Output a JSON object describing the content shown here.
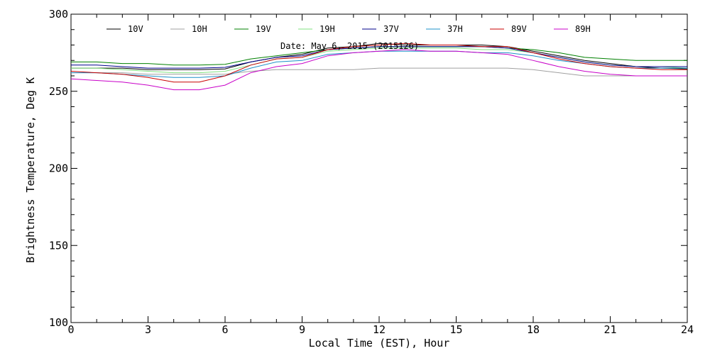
{
  "chart_data": {
    "type": "line",
    "title": "",
    "annotation": "Date: May  6, 2015 (2015126)",
    "xlabel": "Local Time (EST), Hour",
    "ylabel": "Brightness Temperature, Deg  K",
    "xlim": [
      0,
      24
    ],
    "ylim": [
      100,
      300
    ],
    "x_ticks": [
      0,
      3,
      6,
      9,
      12,
      15,
      18,
      21,
      24
    ],
    "y_ticks": [
      100,
      150,
      200,
      250,
      300
    ],
    "x_minor_step": 1,
    "y_minor_step": 10,
    "grid": false,
    "legend_position": "top",
    "series": [
      {
        "name": "10V",
        "color": "#000000",
        "points": [
          [
            0,
            265
          ],
          [
            1,
            265
          ],
          [
            2,
            265
          ],
          [
            3,
            264
          ],
          [
            4,
            264
          ],
          [
            5,
            264
          ],
          [
            6,
            264.5
          ],
          [
            7,
            269
          ],
          [
            8,
            272
          ],
          [
            9,
            274
          ],
          [
            10,
            278
          ],
          [
            11,
            279
          ],
          [
            12,
            281
          ],
          [
            13,
            280
          ],
          [
            14,
            280
          ],
          [
            15,
            280
          ],
          [
            16,
            280
          ],
          [
            17,
            279
          ],
          [
            18,
            276
          ],
          [
            19,
            273
          ],
          [
            20,
            270
          ],
          [
            21,
            268
          ],
          [
            22,
            266
          ],
          [
            23,
            265
          ],
          [
            24,
            264.5
          ]
        ]
      },
      {
        "name": "10H",
        "color": "#a0a0a0",
        "points": [
          [
            0,
            262
          ],
          [
            1,
            262
          ],
          [
            2,
            262
          ],
          [
            3,
            261
          ],
          [
            4,
            261
          ],
          [
            5,
            261
          ],
          [
            6,
            261
          ],
          [
            7,
            263
          ],
          [
            8,
            264
          ],
          [
            9,
            264
          ],
          [
            10,
            264
          ],
          [
            11,
            264
          ],
          [
            12,
            265
          ],
          [
            13,
            265
          ],
          [
            14,
            265
          ],
          [
            15,
            265
          ],
          [
            16,
            265
          ],
          [
            17,
            265
          ],
          [
            18,
            264
          ],
          [
            19,
            262
          ],
          [
            20,
            260
          ],
          [
            21,
            260
          ],
          [
            22,
            260
          ],
          [
            23,
            260
          ],
          [
            24,
            260
          ]
        ]
      },
      {
        "name": "19V",
        "color": "#008000",
        "points": [
          [
            0,
            269
          ],
          [
            1,
            269
          ],
          [
            2,
            268
          ],
          [
            3,
            268
          ],
          [
            4,
            267
          ],
          [
            5,
            267
          ],
          [
            6,
            267.5
          ],
          [
            7,
            271
          ],
          [
            8,
            273
          ],
          [
            9,
            275
          ],
          [
            10,
            277
          ],
          [
            11,
            278
          ],
          [
            12,
            279
          ],
          [
            13,
            279
          ],
          [
            14,
            279
          ],
          [
            15,
            279
          ],
          [
            16,
            279
          ],
          [
            17,
            278
          ],
          [
            18,
            277
          ],
          [
            19,
            275
          ],
          [
            20,
            272
          ],
          [
            21,
            271
          ],
          [
            22,
            270
          ],
          [
            23,
            270
          ],
          [
            24,
            270
          ]
        ]
      },
      {
        "name": "19H",
        "color": "#80e080",
        "points": [
          [
            0,
            265
          ],
          [
            1,
            265
          ],
          [
            2,
            264
          ],
          [
            3,
            263
          ],
          [
            4,
            262
          ],
          [
            5,
            262
          ],
          [
            6,
            263
          ],
          [
            7,
            267
          ],
          [
            8,
            271
          ],
          [
            9,
            272
          ],
          [
            10,
            276
          ],
          [
            11,
            277
          ],
          [
            12,
            278
          ],
          [
            13,
            278
          ],
          [
            14,
            278
          ],
          [
            15,
            278
          ],
          [
            16,
            277
          ],
          [
            17,
            277
          ],
          [
            18,
            275
          ],
          [
            19,
            272
          ],
          [
            20,
            269
          ],
          [
            21,
            267
          ],
          [
            22,
            266
          ],
          [
            23,
            266
          ],
          [
            24,
            265
          ]
        ]
      },
      {
        "name": "37V",
        "color": "#00008b",
        "points": [
          [
            0,
            267
          ],
          [
            1,
            267
          ],
          [
            2,
            266
          ],
          [
            3,
            265
          ],
          [
            4,
            265
          ],
          [
            5,
            265
          ],
          [
            6,
            265.5
          ],
          [
            7,
            269
          ],
          [
            8,
            272
          ],
          [
            9,
            273
          ],
          [
            10,
            277
          ],
          [
            11,
            278
          ],
          [
            12,
            279
          ],
          [
            13,
            279
          ],
          [
            14,
            279
          ],
          [
            15,
            279
          ],
          [
            16,
            279
          ],
          [
            17,
            278
          ],
          [
            18,
            275
          ],
          [
            19,
            272
          ],
          [
            20,
            269
          ],
          [
            21,
            267
          ],
          [
            22,
            266
          ],
          [
            23,
            266
          ],
          [
            24,
            266
          ]
        ]
      },
      {
        "name": "37H",
        "color": "#1e90c8",
        "points": [
          [
            0,
            262
          ],
          [
            1,
            262
          ],
          [
            2,
            261
          ],
          [
            3,
            260
          ],
          [
            4,
            259
          ],
          [
            5,
            259
          ],
          [
            6,
            260
          ],
          [
            7,
            265
          ],
          [
            8,
            269
          ],
          [
            9,
            270
          ],
          [
            10,
            274
          ],
          [
            11,
            275
          ],
          [
            12,
            276
          ],
          [
            13,
            276
          ],
          [
            14,
            276
          ],
          [
            15,
            276
          ],
          [
            16,
            275
          ],
          [
            17,
            275
          ],
          [
            18,
            273
          ],
          [
            19,
            270
          ],
          [
            20,
            268
          ],
          [
            21,
            266
          ],
          [
            22,
            265
          ],
          [
            23,
            265
          ],
          [
            24,
            265
          ]
        ]
      },
      {
        "name": "89V",
        "color": "#c80000",
        "points": [
          [
            0,
            263
          ],
          [
            1,
            262
          ],
          [
            2,
            261
          ],
          [
            3,
            259
          ],
          [
            4,
            256
          ],
          [
            5,
            256
          ],
          [
            6,
            260
          ],
          [
            7,
            267
          ],
          [
            8,
            271
          ],
          [
            9,
            272
          ],
          [
            10,
            277
          ],
          [
            11,
            279
          ],
          [
            12,
            280
          ],
          [
            13,
            281
          ],
          [
            14,
            280
          ],
          [
            15,
            280
          ],
          [
            16,
            279
          ],
          [
            17,
            279
          ],
          [
            18,
            275
          ],
          [
            19,
            271
          ],
          [
            20,
            268
          ],
          [
            21,
            266
          ],
          [
            22,
            265
          ],
          [
            23,
            264
          ],
          [
            24,
            264
          ]
        ]
      },
      {
        "name": "89H",
        "color": "#c800c8",
        "points": [
          [
            0,
            258
          ],
          [
            1,
            257
          ],
          [
            2,
            256
          ],
          [
            3,
            254
          ],
          [
            4,
            251
          ],
          [
            5,
            251
          ],
          [
            6,
            254
          ],
          [
            7,
            262
          ],
          [
            8,
            266
          ],
          [
            9,
            268
          ],
          [
            10,
            273
          ],
          [
            11,
            275
          ],
          [
            12,
            276
          ],
          [
            13,
            277
          ],
          [
            14,
            276
          ],
          [
            15,
            276
          ],
          [
            16,
            275
          ],
          [
            17,
            274
          ],
          [
            18,
            270
          ],
          [
            19,
            266
          ],
          [
            20,
            263
          ],
          [
            21,
            261
          ],
          [
            22,
            260
          ],
          [
            23,
            260
          ],
          [
            24,
            260
          ]
        ]
      }
    ]
  }
}
